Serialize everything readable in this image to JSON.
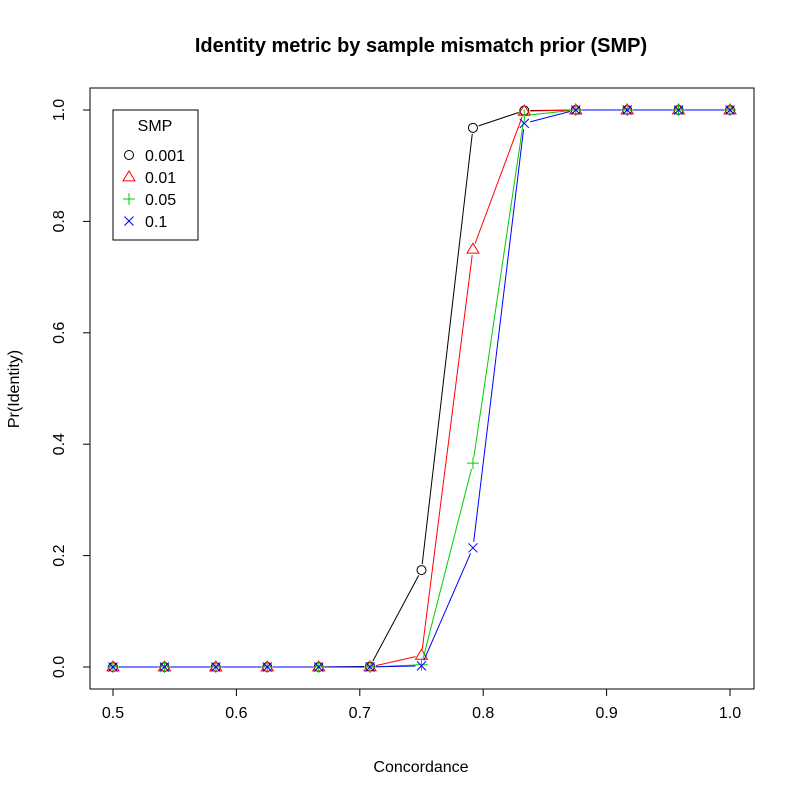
{
  "chart_data": {
    "type": "line",
    "title": "Identity metric by sample mismatch prior (SMP)",
    "xlabel": "Concordance",
    "ylabel": "Pr(Identity)",
    "xlim": [
      0.5,
      1.0
    ],
    "ylim": [
      0.0,
      1.0
    ],
    "x_ticks": [
      "0.5",
      "0.6",
      "0.7",
      "0.8",
      "0.9",
      "1.0"
    ],
    "y_ticks": [
      "0.0",
      "0.2",
      "0.4",
      "0.6",
      "0.8",
      "1.0"
    ],
    "grid": false,
    "legend": {
      "title": "SMP",
      "placement": "top-left"
    },
    "x": [
      0.5,
      0.5417,
      0.5833,
      0.625,
      0.6667,
      0.7083,
      0.75,
      0.7917,
      0.8333,
      0.875,
      0.9167,
      0.9583,
      1.0
    ],
    "series": [
      {
        "name": "0.001",
        "color": "#000000",
        "marker": "circle",
        "values": [
          0,
          0,
          0,
          0,
          0,
          0.001,
          0.174,
          0.968,
          0.999,
          1,
          1,
          1,
          1
        ]
      },
      {
        "name": "0.01",
        "color": "#ff0000",
        "marker": "triangle",
        "values": [
          0,
          0,
          0,
          0,
          0,
          0,
          0.021,
          0.75,
          0.998,
          1,
          1,
          1,
          1
        ]
      },
      {
        "name": "0.05",
        "color": "#00cd00",
        "marker": "plus",
        "values": [
          0,
          0,
          0,
          0,
          0,
          0,
          0.004,
          0.366,
          0.99,
          1,
          1,
          1,
          1
        ]
      },
      {
        "name": "0.1",
        "color": "#0000ff",
        "marker": "cross",
        "values": [
          0,
          0,
          0,
          0,
          0,
          0,
          0.002,
          0.214,
          0.976,
          1,
          1,
          1,
          1
        ]
      }
    ]
  }
}
